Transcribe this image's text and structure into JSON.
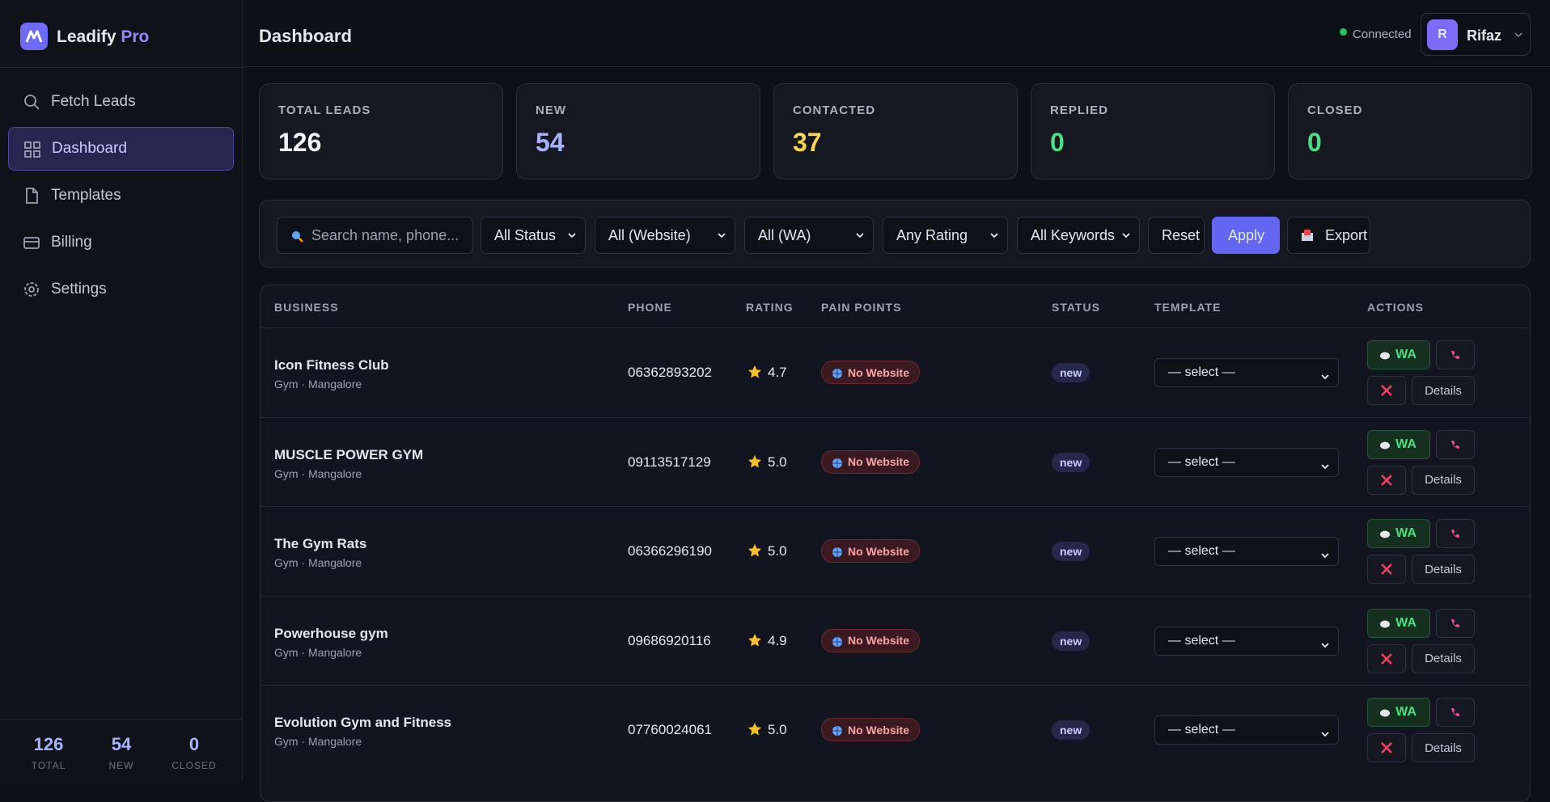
{
  "sidebar": {
    "brand": "Leadify",
    "brand_accent": "Pro",
    "nav": [
      "Fetch Leads",
      "Dashboard",
      "Templates",
      "Billing",
      "Settings"
    ],
    "footer": [
      {
        "value": "126",
        "label": "TOTAL"
      },
      {
        "value": "54",
        "label": "NEW"
      },
      {
        "value": "0",
        "label": "CLOSED"
      }
    ]
  },
  "header": {
    "title": "Dashboard",
    "status": "Connected",
    "user_initial": "R",
    "user_name": "Rifaz"
  },
  "stats": [
    {
      "label": "TOTAL LEADS",
      "value": "126"
    },
    {
      "label": "NEW",
      "value": "54"
    },
    {
      "label": "CONTACTED",
      "value": "37"
    },
    {
      "label": "REPLIED",
      "value": "0"
    },
    {
      "label": "CLOSED",
      "value": "0"
    }
  ],
  "filters": {
    "search_placeholder": "Search name, phone...",
    "selects": [
      "All Status",
      "All (Website)",
      "All (WA)",
      "Any Rating",
      "All Keywords"
    ],
    "reset": "Reset",
    "apply": "Apply",
    "export": "Export"
  },
  "table": {
    "columns": [
      "BUSINESS",
      "PHONE",
      "RATING",
      "PAIN POINTS",
      "STATUS",
      "TEMPLATE",
      "ACTIONS"
    ],
    "rows": [
      {
        "name": "Icon Fitness Club",
        "meta": "Gym · Mangalore",
        "phone": "06362893202",
        "rating": "4.7",
        "pain": "No Website",
        "status": "new",
        "template": "— select —",
        "wa": "WA",
        "details": "Details"
      },
      {
        "name": "MUSCLE POWER GYM",
        "meta": "Gym · Mangalore",
        "phone": "09113517129",
        "rating": "5.0",
        "pain": "No Website",
        "status": "new",
        "template": "— select —",
        "wa": "WA",
        "details": "Details"
      },
      {
        "name": "The Gym Rats",
        "meta": "Gym · Mangalore",
        "phone": "06366296190",
        "rating": "5.0",
        "pain": "No Website",
        "status": "new",
        "template": "— select —",
        "wa": "WA",
        "details": "Details"
      },
      {
        "name": "Powerhouse gym",
        "meta": "Gym · Mangalore",
        "phone": "09686920116",
        "rating": "4.9",
        "pain": "No Website",
        "status": "new",
        "template": "— select —",
        "wa": "WA",
        "details": "Details"
      },
      {
        "name": "Evolution Gym and Fitness",
        "meta": "Gym · Mangalore",
        "phone": "07760024061",
        "rating": "5.0",
        "pain": "No Website",
        "status": "new",
        "template": "— select —",
        "wa": "WA",
        "details": "Details"
      }
    ]
  }
}
